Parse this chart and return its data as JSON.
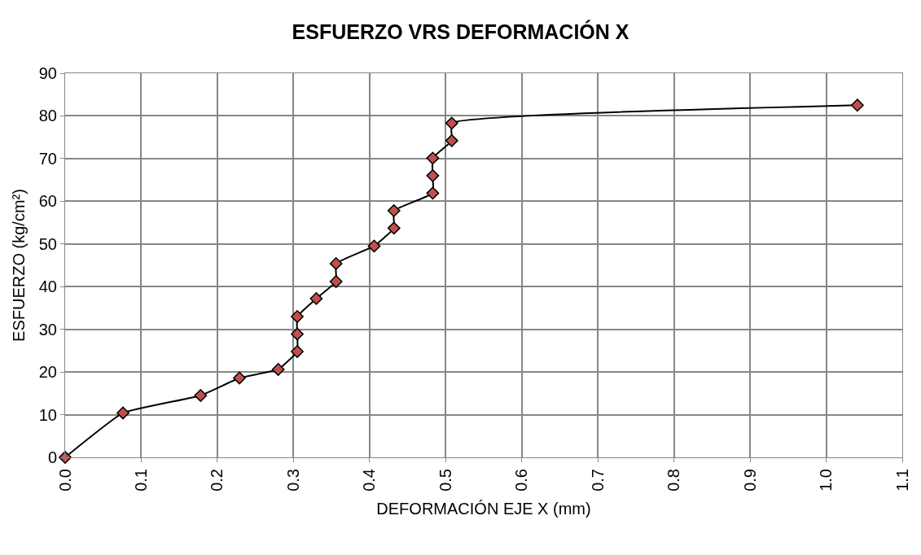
{
  "chart_data": {
    "type": "line",
    "title": "ESFUERZO VRS DEFORMACIÓN X",
    "xlabel": "DEFORMACIÓN EJE X (mm)",
    "ylabel": "ESFUERZO (kg/cm²)",
    "x": [
      0,
      0.076,
      0.178,
      0.229,
      0.28,
      0.305,
      0.305,
      0.305,
      0.33,
      0.356,
      0.356,
      0.406,
      0.432,
      0.432,
      0.483,
      0.483,
      0.483,
      0.508,
      0.508,
      1.041
    ],
    "series": [
      {
        "color": "#c0504d",
        "values": [
          0,
          10.4,
          14.5,
          18.6,
          20.6,
          24.8,
          28.9,
          33.0,
          37.2,
          41.2,
          45.4,
          49.5,
          53.7,
          57.8,
          61.9,
          66.0,
          70.1,
          74.2,
          78.3,
          82.5
        ]
      }
    ],
    "xlim": [
      0,
      1.1
    ],
    "ylim": [
      0,
      90
    ],
    "xticks": [
      {
        "value": 0,
        "label": "0.0"
      },
      0.1,
      0.2,
      0.3,
      0.4,
      0.5,
      0.6,
      0.7,
      0.8,
      0.9,
      {
        "value": 1,
        "label": "1.0"
      },
      1.1
    ],
    "yticks": [
      0,
      10,
      20,
      30,
      40,
      50,
      60,
      70,
      80,
      90
    ],
    "grid": true,
    "marker": "diamond",
    "line_style": "solid"
  }
}
